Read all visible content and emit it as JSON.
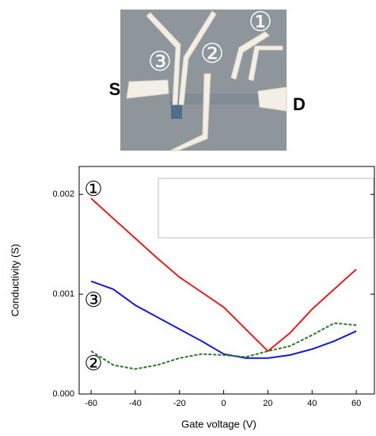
{
  "photo": {
    "labels": [
      "S",
      "D",
      "①",
      "②",
      "③"
    ]
  },
  "chart_data": {
    "type": "line",
    "x_label": "Gate voltage (V)",
    "y_label": "Conductivity (S)",
    "annotations": [
      "①",
      "③",
      "②"
    ],
    "x": [
      -60,
      -50,
      -40,
      -30,
      -20,
      -10,
      0,
      10,
      20,
      30,
      40,
      50,
      60
    ],
    "series": [
      {
        "color": "#e02020",
        "dash": false,
        "values": [
          0.00196,
          0.00176,
          0.00156,
          0.00136,
          0.00117,
          0.00102,
          0.00087,
          0.00065,
          0.00043,
          0.00061,
          0.00085,
          0.00105,
          0.00125
        ]
      },
      {
        "color": "#1a1ad0",
        "dash": false,
        "values": [
          0.00113,
          0.00105,
          0.00089,
          0.00077,
          0.00065,
          0.00053,
          0.0004,
          0.00036,
          0.00036,
          0.00039,
          0.00045,
          0.00053,
          0.00063
        ]
      },
      {
        "color": "#2a7a2a",
        "dash": true,
        "values": [
          0.00043,
          0.00029,
          0.00025,
          0.00029,
          0.00036,
          0.0004,
          0.00039,
          0.00037,
          0.00043,
          0.00048,
          0.00059,
          0.00071,
          0.00069
        ]
      }
    ],
    "xlim": [
      -65.4,
      68.2
    ],
    "ylim": [
      0,
      0.00228
    ],
    "xticks": [
      -60,
      -40,
      -20,
      0,
      20,
      40,
      60
    ],
    "yticks": [
      {
        "value": 0,
        "label": "0.000"
      },
      0.001,
      0.002
    ]
  }
}
